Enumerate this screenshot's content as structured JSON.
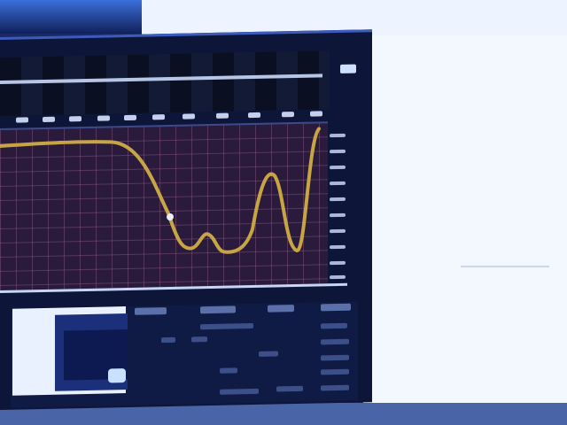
{
  "window": {
    "accent": "#3c5bbd",
    "background": "#0d1638"
  },
  "plot": {
    "grid": true,
    "background": "#2a1a3c",
    "trace_color": "#c7a544"
  },
  "panel": {
    "thumbnail": "thumbnail-image"
  }
}
